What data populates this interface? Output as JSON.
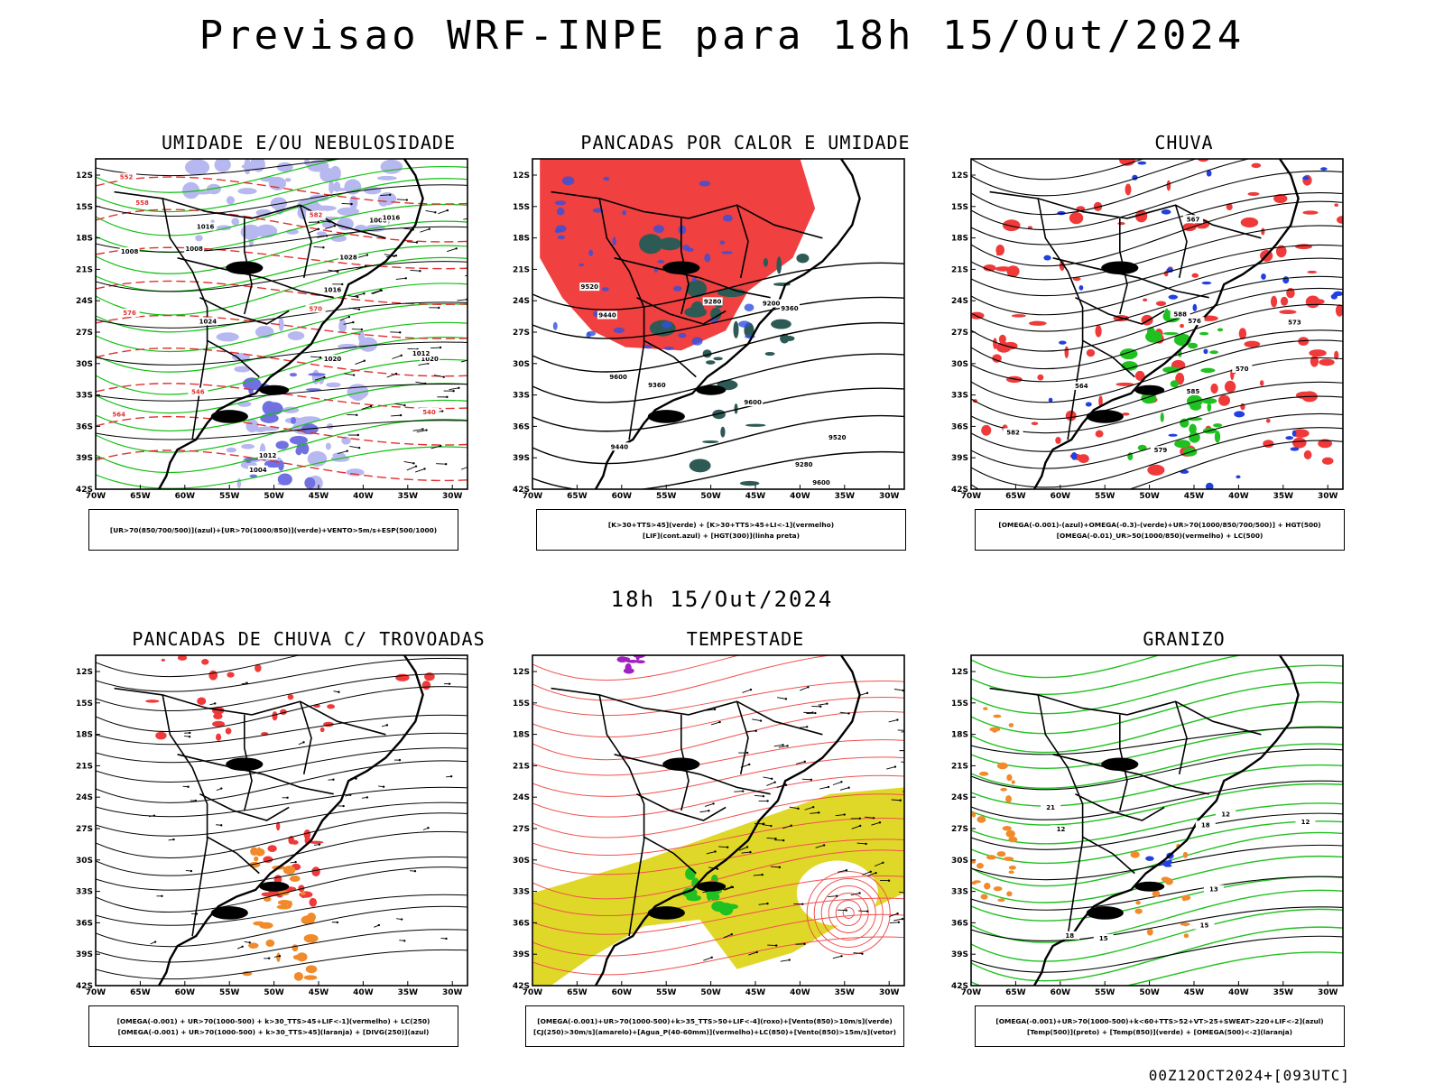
{
  "header": {
    "title": "Previsao WRF-INPE  para 18h 15/Out/2024",
    "subtitle": "18h 15/Out/2024",
    "footer": "00Z12OCT2024+[093UTC]"
  },
  "axes": {
    "lat_labels": [
      "12S",
      "15S",
      "18S",
      "21S",
      "24S",
      "27S",
      "30S",
      "33S",
      "36S",
      "39S",
      "42S"
    ],
    "lon_labels": [
      "70W",
      "65W",
      "60W",
      "55W",
      "50W",
      "45W",
      "40W",
      "35W",
      "30W"
    ]
  },
  "panels": [
    {
      "id": "umidade",
      "title": "UMIDADE E/OU NEBULOSIDADE",
      "legend": [
        "[UR>70(850/700/500)](azul)+[UR>70(1000/850)](verde)+VENTO>5m/s+ESP(500/1000)"
      ],
      "isobar_labels": [
        "1008",
        "1008",
        "1016",
        "1012",
        "1008",
        "1004",
        "1020",
        "1024",
        "1016",
        "1020",
        "1012",
        "1016",
        "1028"
      ],
      "thickness_labels": [
        "558",
        "576",
        "570",
        "564",
        "582",
        "552",
        "546",
        "540"
      ]
    },
    {
      "id": "pancadas-calor",
      "title": "PANCADAS POR CALOR E UMIDADE",
      "legend": [
        "[K>30+TTS>45](verde) + [K>30+TTS>45+LI<-1](vermelho)",
        "[LIF](cont.azul) + [HGT(300)](linha preta)"
      ],
      "hgt_labels": [
        "9600",
        "9600",
        "9600",
        "9520",
        "9520",
        "9440",
        "9440",
        "9360",
        "9360",
        "9280",
        "9200",
        "9280"
      ]
    },
    {
      "id": "chuva",
      "title": "CHUVA",
      "legend": [
        "[OMEGA(-0.001)-(azul)+OMEGA(-0.3)-(verde)+UR>70(1000/850/700/500)] + HGT(500)",
        "[OMEGA(-0.01)_UR>50(1000/850)(vermelho) + LC(500)"
      ],
      "hgt_labels": [
        "585",
        "582",
        "579",
        "576",
        "573",
        "570",
        "567",
        "564",
        "588"
      ]
    },
    {
      "id": "trovoadas",
      "title": "PANCADAS DE CHUVA C/ TROVOADAS",
      "legend": [
        "[OMEGA(-0.001) + UR>70(1000-500) + k>30_TTS>45+LIF<-1](vermelho) + LC(250)",
        "[OMEGA(-0.001) + UR>70(1000-500) + k>30_TTS>45](laranja) + [DIVG(250)](azul)"
      ]
    },
    {
      "id": "tempestade",
      "title": "TEMPESTADE",
      "legend": [
        "[OMEGA(-0.001)+UR>70(1000-500)+k>35_TTS>50+LIF<-4](roxo)+[Vento(850)>10m/s](verde)",
        "[CJ(250)>30m/s](amarelo)+[Agua_P(40-60mm)](vermelho)+LC(850)+[Vento(850)>15m/s](vetor)"
      ]
    },
    {
      "id": "granizo",
      "title": "GRANIZO",
      "legend": [
        "[OMEGA(-0.001)+UR>70(1000-500)+k<60+TTS>52+VT>25+SWEAT>220+LIF<-2](azul)",
        "[Temp(500)](preto) + [Temp(850)](verde) + [OMEGA(500)<-2](laranja)"
      ],
      "temp_labels": [
        "12",
        "12",
        "12",
        "15",
        "15",
        "18",
        "18",
        "21",
        "13"
      ]
    }
  ]
}
